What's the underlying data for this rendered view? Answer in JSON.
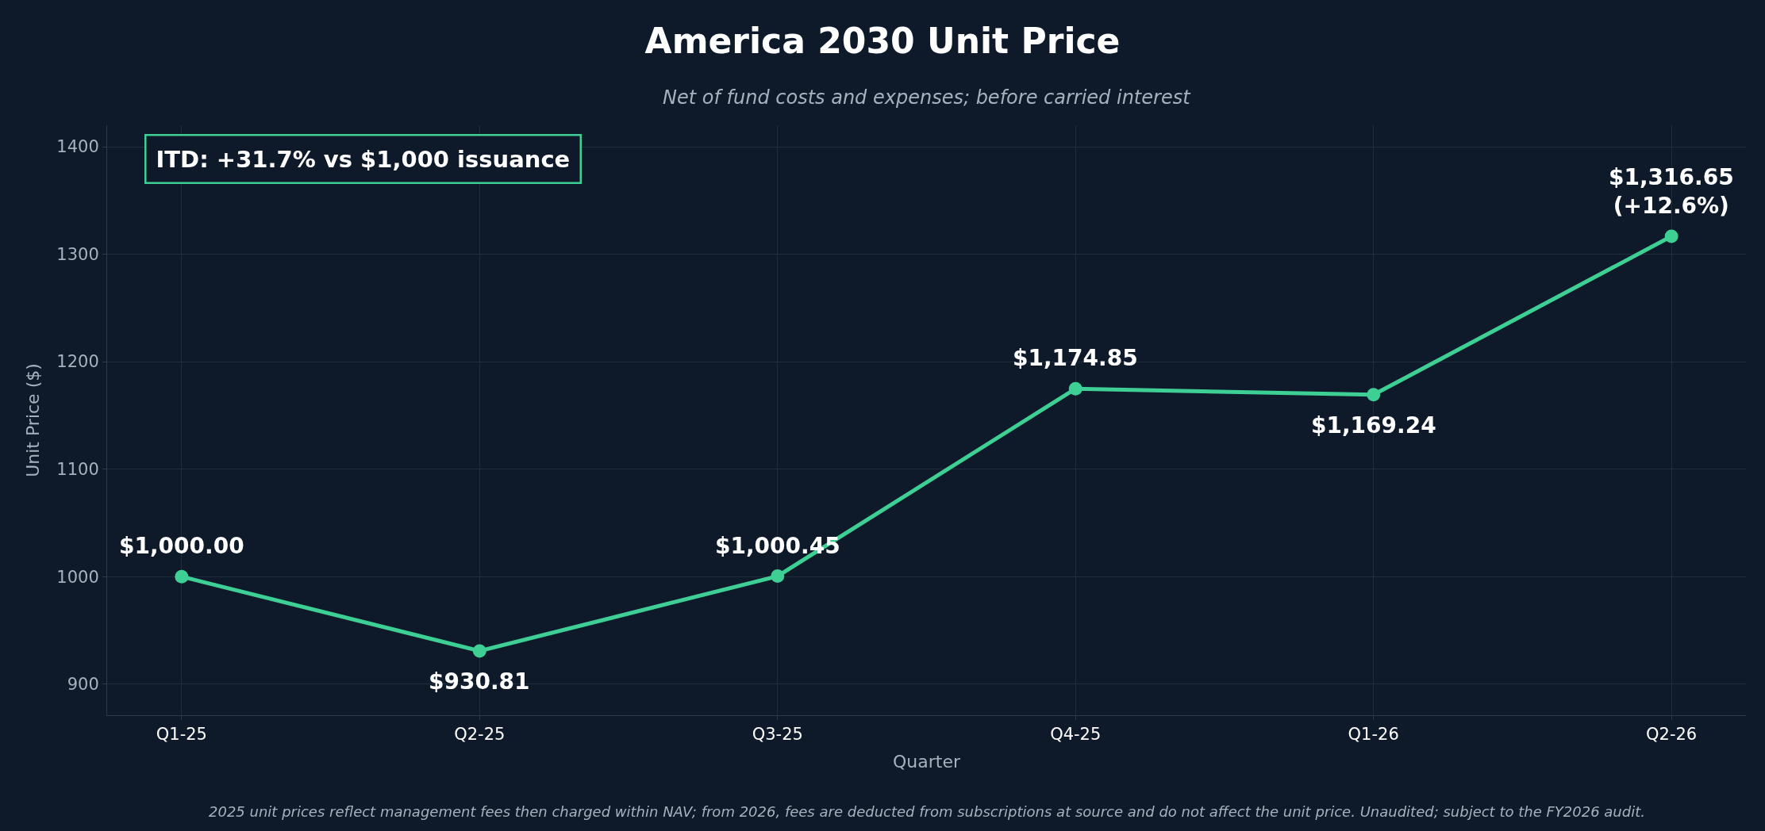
{
  "chart_data": {
    "type": "line",
    "title": "America 2030 Unit Price",
    "subtitle": "Net of fund costs and expenses; before carried interest",
    "xlabel": "Quarter",
    "ylabel": "Unit Price ($)",
    "categories": [
      "Q1-25",
      "Q2-25",
      "Q3-25",
      "Q4-25",
      "Q1-26",
      "Q2-26"
    ],
    "series": [
      {
        "color": "#3ecf94",
        "values": [
          1000.0,
          930.81,
          1000.45,
          1174.85,
          1169.24,
          1316.65
        ],
        "value_labels": [
          "$1,000.00",
          "$930.81",
          "$1,000.45",
          "$1,174.85",
          "$1,169.24",
          "$1,316.65\n(+12.6%)"
        ]
      }
    ],
    "ylim": [
      871,
      1420
    ],
    "yticks": [
      900,
      1000,
      1100,
      1200,
      1300,
      1400
    ],
    "grid": true,
    "marker": "circle",
    "line_style": "solid",
    "annotations": [
      "ITD: +31.7% vs $1,000 issuance",
      "2025 unit prices reflect management fees then charged within NAV; from 2026, fees are deducted from subscriptions at source and do not affect the unit price. Unaudited; subject to the FY2026 audit."
    ]
  }
}
